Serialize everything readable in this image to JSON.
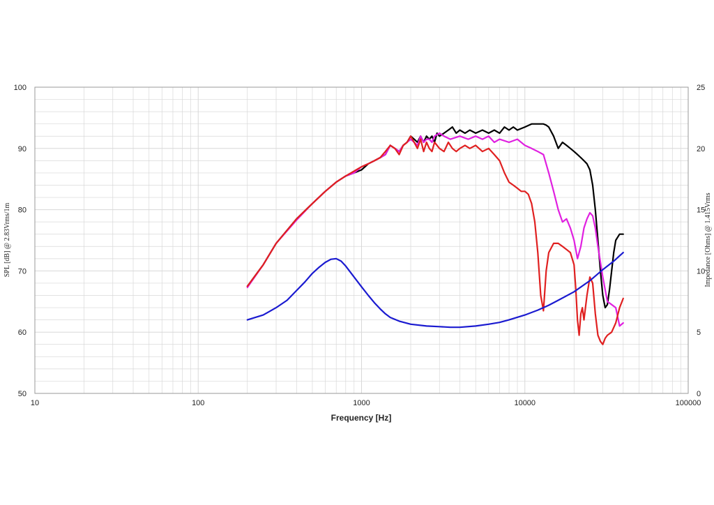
{
  "chart_data": {
    "type": "line",
    "xlabel": "Frequency [Hz]",
    "ylabel": "SPL [dB] @ 2.83Vrms/1m",
    "y2label": "Impedance [Ohms] @ 1.415Vrms",
    "xscale": "log",
    "xlim": [
      10,
      100000
    ],
    "ylim": [
      50,
      100
    ],
    "y2lim": [
      0,
      25
    ],
    "grid": true,
    "x_ticks": [
      "10",
      "100",
      "1000",
      "10000",
      "100000"
    ],
    "y_ticks": [
      "50",
      "60",
      "70",
      "80",
      "90",
      "100"
    ],
    "y2_ticks": [
      "0",
      "5",
      "10",
      "15",
      "20",
      "25"
    ],
    "colors": {
      "black": "#000000",
      "magenta": "#e020e0",
      "red": "#e02020",
      "blue": "#1a1ad0",
      "grid": "#d8d8d8"
    },
    "series": [
      {
        "color": "#000000",
        "axis": "left",
        "x": [
          200,
          250,
          300,
          400,
          500,
          600,
          700,
          800,
          900,
          1000,
          1100,
          1200,
          1300,
          1400,
          1500,
          1600,
          1700,
          1800,
          1900,
          2000,
          2100,
          2200,
          2300,
          2400,
          2500,
          2600,
          2700,
          2800,
          2900,
          3000,
          3200,
          3400,
          3600,
          3800,
          4000,
          4300,
          4600,
          5000,
          5500,
          6000,
          6500,
          7000,
          7500,
          8000,
          8500,
          9000,
          10000,
          11000,
          12000,
          13000,
          13500,
          14000,
          15000,
          16000,
          17000,
          18000,
          19000,
          20000,
          21000,
          22000,
          23000,
          24000,
          25000,
          26000,
          27000,
          28000,
          29000,
          30000,
          31000,
          32000,
          33000,
          34000,
          35000,
          36000,
          38000,
          40000
        ],
        "y": [
          67.5,
          71,
          74.5,
          78.5,
          81,
          83,
          84.5,
          85.5,
          86,
          86.5,
          87.5,
          88,
          88.5,
          89,
          90.5,
          90,
          89.5,
          90.5,
          91,
          92,
          91.5,
          91,
          92,
          91,
          92,
          91.5,
          92,
          91,
          92.5,
          92,
          92.5,
          93,
          93.5,
          92.5,
          93,
          92.5,
          93,
          92.5,
          93,
          92.5,
          93,
          92.5,
          93.5,
          93,
          93.5,
          93,
          93.5,
          94,
          94,
          94,
          93.8,
          93.5,
          92,
          90,
          91,
          90.5,
          90,
          89.5,
          89,
          88.5,
          88,
          87.5,
          86.5,
          84,
          80,
          75,
          70,
          66,
          64,
          64.5,
          67,
          70,
          73,
          75,
          76,
          76
        ]
      },
      {
        "color": "#e020e0",
        "axis": "left",
        "x": [
          200,
          250,
          300,
          400,
          500,
          600,
          700,
          800,
          900,
          1000,
          1100,
          1200,
          1300,
          1400,
          1500,
          1600,
          1700,
          1800,
          1900,
          2000,
          2100,
          2200,
          2300,
          2400,
          2500,
          2600,
          2700,
          2800,
          3000,
          3200,
          3500,
          4000,
          4500,
          5000,
          5500,
          6000,
          6500,
          7000,
          8000,
          9000,
          10000,
          11000,
          12000,
          13000,
          14000,
          15000,
          16000,
          17000,
          18000,
          19000,
          20000,
          21000,
          22000,
          23000,
          24000,
          25000,
          26000,
          27000,
          28000,
          30000,
          32000,
          34000,
          36000,
          38000,
          40000
        ],
        "y": [
          67.3,
          71,
          74.5,
          78.3,
          81,
          83,
          84.5,
          85.5,
          86,
          87,
          87.5,
          88,
          88.5,
          89,
          90.5,
          90,
          89.5,
          90.5,
          91,
          91.5,
          91,
          90.5,
          92,
          91,
          91.5,
          91.5,
          91,
          92,
          92.5,
          92,
          91.5,
          92,
          91.5,
          92,
          91.5,
          92,
          91,
          91.5,
          91,
          91.5,
          90.5,
          90,
          89.5,
          89,
          86,
          83,
          80,
          78,
          78.5,
          77,
          75,
          72,
          74,
          77,
          78.5,
          79.5,
          79,
          77,
          74,
          69,
          65,
          64.5,
          64,
          61,
          61.5
        ]
      },
      {
        "color": "#e02020",
        "axis": "left",
        "x": [
          200,
          250,
          300,
          400,
          500,
          600,
          700,
          800,
          900,
          1000,
          1100,
          1200,
          1300,
          1400,
          1500,
          1600,
          1700,
          1800,
          1900,
          2000,
          2100,
          2200,
          2300,
          2400,
          2500,
          2600,
          2700,
          2800,
          3000,
          3200,
          3400,
          3600,
          3800,
          4000,
          4300,
          4600,
          5000,
          5500,
          6000,
          6500,
          7000,
          7500,
          8000,
          8500,
          9000,
          9500,
          10000,
          10500,
          11000,
          11500,
          12000,
          12500,
          13000,
          13500,
          14000,
          15000,
          16000,
          17000,
          18000,
          19000,
          20000,
          20500,
          21000,
          21500,
          22000,
          22500,
          23000,
          24000,
          25000,
          26000,
          27000,
          28000,
          29000,
          30000,
          31000,
          32000,
          34000,
          36000,
          38000,
          40000
        ],
        "y": [
          67.5,
          71,
          74.5,
          78.5,
          81,
          83,
          84.5,
          85.5,
          86.3,
          87,
          87.5,
          88,
          88.5,
          89.5,
          90.5,
          90,
          89,
          90.5,
          91,
          92,
          91,
          90,
          91.5,
          89.5,
          91,
          90,
          89.5,
          91,
          90,
          89.5,
          91,
          90,
          89.5,
          90,
          90.5,
          90,
          90.5,
          89.5,
          90,
          89,
          88,
          86,
          84.5,
          84,
          83.5,
          83,
          83,
          82.5,
          81,
          78,
          73,
          66,
          63.5,
          70,
          73,
          74.5,
          74.5,
          74,
          73.5,
          73,
          71,
          67,
          62,
          59.5,
          63,
          64,
          62,
          66,
          69,
          68,
          63,
          59.5,
          58.5,
          58,
          59,
          59.5,
          60,
          61.5,
          64,
          65.5
        ]
      },
      {
        "color": "#1a1ad0",
        "axis": "right",
        "x": [
          200,
          250,
          300,
          350,
          400,
          450,
          500,
          550,
          600,
          650,
          700,
          750,
          800,
          900,
          1000,
          1100,
          1200,
          1300,
          1400,
          1500,
          1700,
          2000,
          2500,
          3000,
          3500,
          4000,
          5000,
          6000,
          7000,
          8000,
          10000,
          12000,
          14000,
          16000,
          20000,
          25000,
          30000,
          35000,
          40000
        ],
        "y": [
          6.0,
          6.4,
          7.0,
          7.6,
          8.4,
          9.1,
          9.8,
          10.3,
          10.7,
          10.95,
          11.0,
          10.8,
          10.4,
          9.5,
          8.7,
          8.0,
          7.4,
          6.9,
          6.5,
          6.2,
          5.9,
          5.65,
          5.5,
          5.45,
          5.4,
          5.4,
          5.5,
          5.65,
          5.8,
          6.0,
          6.4,
          6.8,
          7.2,
          7.6,
          8.3,
          9.2,
          10.1,
          10.8,
          11.5
        ]
      }
    ]
  }
}
